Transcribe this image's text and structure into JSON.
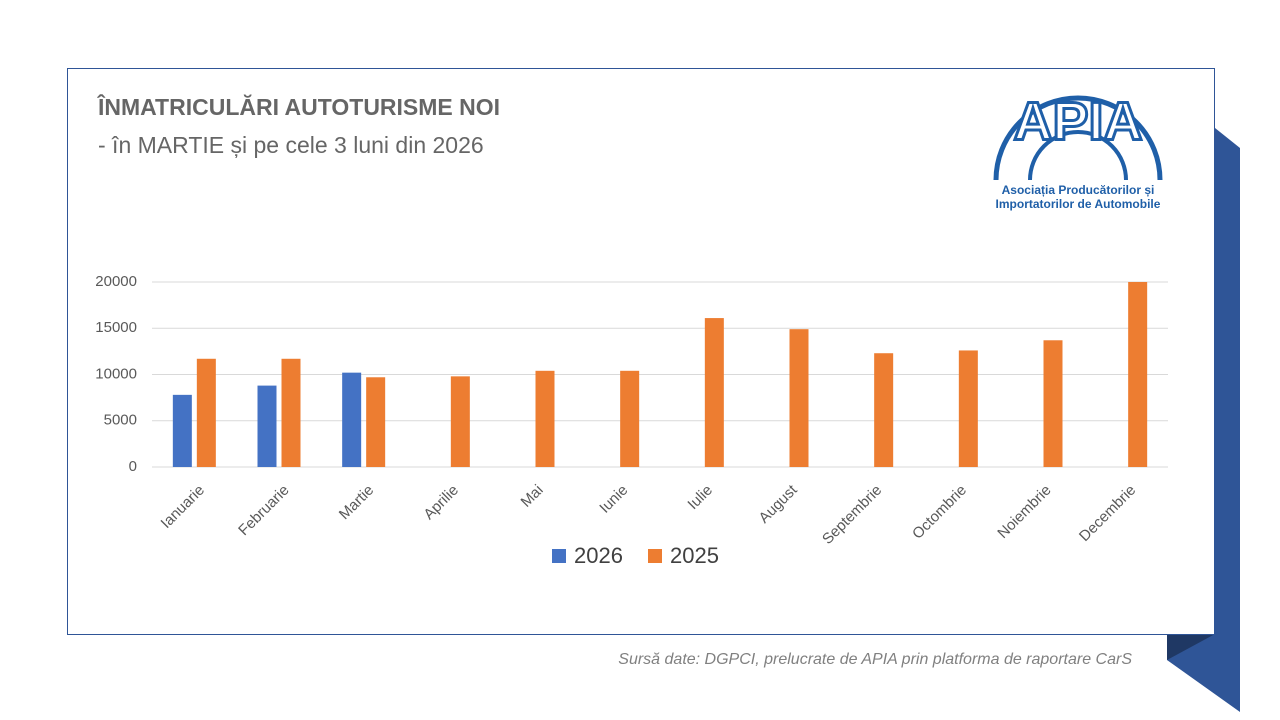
{
  "chart_data": {
    "type": "bar",
    "title": "ÎNMATRICULĂRI AUTOTURISME NOI",
    "subtitle": "- în MARTIE și pe cele 3 luni din 2026",
    "categories": [
      "Ianuarie",
      "Februarie",
      "Martie",
      "Aprilie",
      "Mai",
      "Iunie",
      "Iulie",
      "August",
      "Septembrie",
      "Octombrie",
      "Noiembrie",
      "Decembrie"
    ],
    "series": [
      {
        "name": "2026",
        "color": "#4472c4",
        "values": [
          7800,
          8800,
          10200,
          null,
          null,
          null,
          null,
          null,
          null,
          null,
          null,
          null
        ]
      },
      {
        "name": "2025",
        "color": "#ed7d31",
        "values": [
          11700,
          11700,
          9700,
          9800,
          10400,
          10400,
          16100,
          14900,
          12300,
          12600,
          13700,
          20000
        ]
      }
    ],
    "ylim": [
      0,
      20000
    ],
    "yticks": [
      0,
      5000,
      10000,
      15000,
      20000
    ],
    "grid": true,
    "legend": "bottom"
  },
  "logo": {
    "name": "APIA",
    "line1": "Asociația Producătorilor și",
    "line2": "Importatorilor de Automobile"
  },
  "source": "Sursă date: DGPCI, prelucrate de APIA prin platforma de raportare CarS"
}
